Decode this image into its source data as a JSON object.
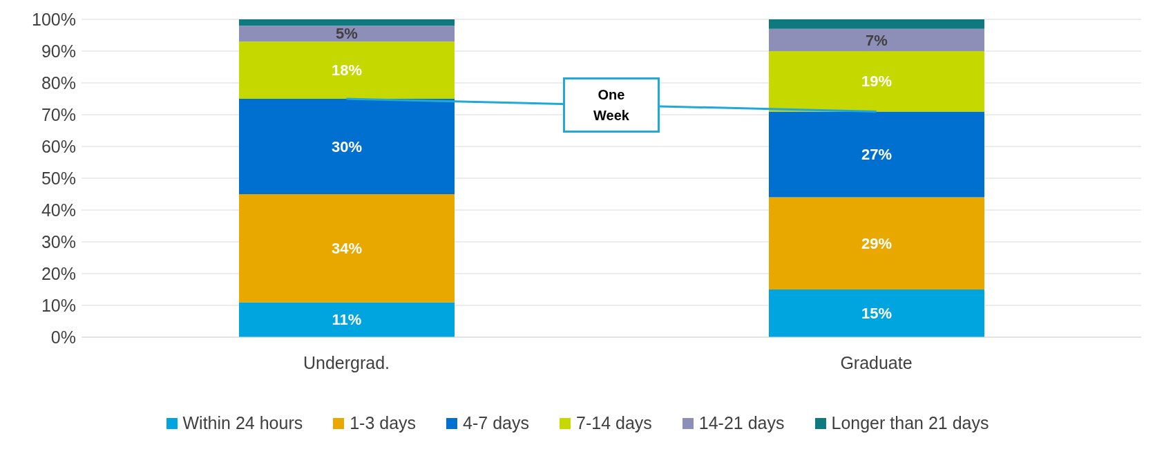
{
  "chart_data": {
    "type": "bar",
    "stacked": true,
    "categories": [
      "Undergrad.",
      "Graduate"
    ],
    "ylim": [
      0,
      100
    ],
    "yticks": [
      {
        "value": 0,
        "label": "0%"
      },
      {
        "value": 10,
        "label": "10%"
      },
      {
        "value": 20,
        "label": "20%"
      },
      {
        "value": 30,
        "label": "30%"
      },
      {
        "value": 40,
        "label": "40%"
      },
      {
        "value": 50,
        "label": "50%"
      },
      {
        "value": 60,
        "label": "60%"
      },
      {
        "value": 70,
        "label": "70%"
      },
      {
        "value": 80,
        "label": "80%"
      },
      {
        "value": 90,
        "label": "90%"
      },
      {
        "value": 100,
        "label": "100%"
      }
    ],
    "grid": "y",
    "legend": "bottom",
    "series": [
      {
        "name": "Within 24 hours",
        "color": "#00a5e0",
        "values": [
          11,
          15
        ],
        "value_labels": [
          "11%",
          "15%"
        ]
      },
      {
        "name": "1-3 days",
        "color": "#e9a800",
        "values": [
          34,
          29
        ],
        "value_labels": [
          "34%",
          "29%"
        ]
      },
      {
        "name": "4-7 days",
        "color": "#0070d0",
        "values": [
          30,
          27
        ],
        "value_labels": [
          "30%",
          "27%"
        ]
      },
      {
        "name": "7-14 days",
        "color": "#c5d800",
        "values": [
          18,
          19
        ],
        "value_labels": [
          "18%",
          "19%"
        ]
      },
      {
        "name": "14-21 days",
        "color": "#8e8fb8",
        "values": [
          5,
          7
        ],
        "value_labels": [
          "5%",
          "7%"
        ]
      },
      {
        "name": "Longer than 21 days",
        "color": "#0e7a80",
        "values": [
          2,
          3
        ],
        "value_labels": [
          null,
          null
        ]
      },
      {
        "type": "line",
        "color": "#1fa8d8",
        "values": [
          75,
          71
        ]
      }
    ],
    "annotations": [
      "One Week"
    ]
  }
}
